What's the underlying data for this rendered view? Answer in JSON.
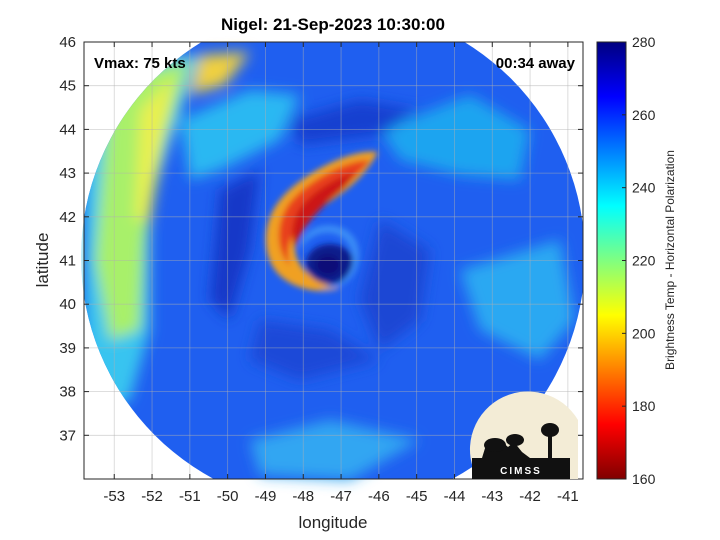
{
  "chart_data": {
    "type": "heatmap",
    "title": "Nigel: 21-Sep-2023 10:30:00",
    "xlabel": "longitude",
    "ylabel": "latitude",
    "xlim": [
      -53.8,
      -40.6
    ],
    "ylim": [
      36.0,
      46.0
    ],
    "x_ticks": [
      -53,
      -52,
      -51,
      -50,
      -49,
      -48,
      -47,
      -46,
      -45,
      -44,
      -43,
      -42,
      -41
    ],
    "y_ticks": [
      37,
      38,
      39,
      40,
      41,
      42,
      43,
      44,
      45,
      46
    ],
    "grid": true,
    "storm_center": {
      "lon": -47.3,
      "lat": 40.9
    },
    "annotations": {
      "vmax": "Vmax: 75 kts",
      "time_away": "00:34 away"
    },
    "colorbar": {
      "label": "Brightness Temp - Horizontal Polarization",
      "range": [
        160,
        280
      ],
      "ticks": [
        160,
        180,
        200,
        220,
        240,
        260,
        280
      ],
      "colormap": "jet"
    },
    "features": [
      {
        "name": "eye",
        "lon": -47.3,
        "lat": 40.9,
        "value": 268
      },
      {
        "name": "rainband core",
        "lon": -48.2,
        "lat": 42.0,
        "value": 190
      },
      {
        "name": "western dry region",
        "lon": -52.8,
        "lat": 40.5,
        "value": 225
      }
    ],
    "logo_text": "CIMSS"
  }
}
